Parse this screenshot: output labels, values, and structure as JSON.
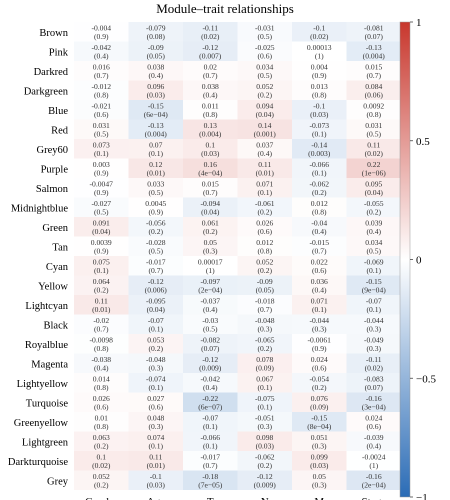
{
  "chart_data": {
    "type": "heatmap",
    "title": "Module–trait relationships",
    "columns": [
      "Gender",
      "Age",
      "T",
      "N",
      "M",
      "Stage"
    ],
    "rows": [
      {
        "name": "Brown",
        "cells": [
          [
            "-0.004",
            "(0.9)"
          ],
          [
            "-0.079",
            "(0.08)"
          ],
          [
            "-0.11",
            "(0.02)"
          ],
          [
            "-0.031",
            "(0.5)"
          ],
          [
            "-0.1",
            "(0.02)"
          ],
          [
            "-0.081",
            "(0.07)"
          ]
        ]
      },
      {
        "name": "Pink",
        "cells": [
          [
            "-0.042",
            "(0.4)"
          ],
          [
            "-0.09",
            "(0.05)"
          ],
          [
            "-0.12",
            "(0.007)"
          ],
          [
            "-0.025",
            "(0.6)"
          ],
          [
            "0.00013",
            "(1)"
          ],
          [
            "-0.13",
            "(0.004)"
          ]
        ]
      },
      {
        "name": "Darkred",
        "cells": [
          [
            "0.016",
            "(0.7)"
          ],
          [
            "0.038",
            "(0.4)"
          ],
          [
            "0.02",
            "(0.7)"
          ],
          [
            "0.034",
            "(0.5)"
          ],
          [
            "0.004",
            "(0.9)"
          ],
          [
            "0.015",
            "(0.7)"
          ]
        ]
      },
      {
        "name": "Darkgreen",
        "cells": [
          [
            "-0.012",
            "(0.8)"
          ],
          [
            "0.096",
            "(0.03)"
          ],
          [
            "0.038",
            "(0.4)"
          ],
          [
            "0.052",
            "(0.2)"
          ],
          [
            "0.013",
            "(0.8)"
          ],
          [
            "0.084",
            "(0.06)"
          ]
        ]
      },
      {
        "name": "Blue",
        "cells": [
          [
            "-0.021",
            "(0.6)"
          ],
          [
            "-0.15",
            "(6e−04)"
          ],
          [
            "0.011",
            "(0.8)"
          ],
          [
            "0.094",
            "(0.04)"
          ],
          [
            "-0.1",
            "(0.03)"
          ],
          [
            "0.0092",
            "(0.8)"
          ]
        ]
      },
      {
        "name": "Red",
        "cells": [
          [
            "0.031",
            "(0.5)"
          ],
          [
            "-0.13",
            "(0.004)"
          ],
          [
            "0.13",
            "(0.004)"
          ],
          [
            "0.14",
            "(0.001)"
          ],
          [
            "-0.073",
            "(0.1)"
          ],
          [
            "0.031",
            "(0.5)"
          ]
        ]
      },
      {
        "name": "Grey60",
        "cells": [
          [
            "0.073",
            "(0.1)"
          ],
          [
            "0.07",
            "(0.1)"
          ],
          [
            "0.1",
            "(0.03)"
          ],
          [
            "0.037",
            "(0.4)"
          ],
          [
            "-0.14",
            "(0.003)"
          ],
          [
            "0.11",
            "(0.02)"
          ]
        ]
      },
      {
        "name": "Purple",
        "cells": [
          [
            "0.003",
            "(0.9)"
          ],
          [
            "0.12",
            "(0.01)"
          ],
          [
            "0.16",
            "(4e−04)"
          ],
          [
            "0.11",
            "(0.01)"
          ],
          [
            "-0.066",
            "(0.1)"
          ],
          [
            "0.22",
            "(1e−06)"
          ]
        ]
      },
      {
        "name": "Salmon",
        "cells": [
          [
            "-0.0047",
            "(0.9)"
          ],
          [
            "0.033",
            "(0.5)"
          ],
          [
            "0.015",
            "(0.7)"
          ],
          [
            "0.071",
            "(0.1)"
          ],
          [
            "-0.062",
            "(0.2)"
          ],
          [
            "0.095",
            "(0.04)"
          ]
        ]
      },
      {
        "name": "Midnightblue",
        "cells": [
          [
            "-0.027",
            "(0.5)"
          ],
          [
            "0.0045",
            "(0.9)"
          ],
          [
            "-0.094",
            "(0.04)"
          ],
          [
            "-0.061",
            "(0.2)"
          ],
          [
            "0.012",
            "(0.8)"
          ],
          [
            "-0.055",
            "(0.2)"
          ]
        ]
      },
      {
        "name": "Green",
        "cells": [
          [
            "0.091",
            "(0.04)"
          ],
          [
            "-0.056",
            "(0.2)"
          ],
          [
            "0.061",
            "(0.2)"
          ],
          [
            "0.026",
            "(0.6)"
          ],
          [
            "-0.04",
            "(0.4)"
          ],
          [
            "0.039",
            "(0.4)"
          ]
        ]
      },
      {
        "name": "Tan",
        "cells": [
          [
            "0.0039",
            "(0.9)"
          ],
          [
            "-0.028",
            "(0.5)"
          ],
          [
            "0.05",
            "(0.3)"
          ],
          [
            "0.012",
            "(0.8)"
          ],
          [
            "-0.015",
            "(0.7)"
          ],
          [
            "0.034",
            "(0.5)"
          ]
        ]
      },
      {
        "name": "Cyan",
        "cells": [
          [
            "0.075",
            "(0.1)"
          ],
          [
            "-0.017",
            "(0.7)"
          ],
          [
            "0.00017",
            "(1)"
          ],
          [
            "0.052",
            "(0.2)"
          ],
          [
            "0.022",
            "(0.6)"
          ],
          [
            "-0.069",
            "(0.1)"
          ]
        ]
      },
      {
        "name": "Yellow",
        "cells": [
          [
            "0.064",
            "(0.2)"
          ],
          [
            "-0.12",
            "(0.006)"
          ],
          [
            "-0.097",
            "(2e−04)"
          ],
          [
            "-0.09",
            "(0.05)"
          ],
          [
            "0.036",
            "(0.4)"
          ],
          [
            "-0.15",
            "(9e−04)"
          ]
        ]
      },
      {
        "name": "Lightcyan",
        "cells": [
          [
            "0.11",
            "(0.01)"
          ],
          [
            "-0.095",
            "(0.04)"
          ],
          [
            "-0.037",
            "(0.4)"
          ],
          [
            "-0.018",
            "(0.7)"
          ],
          [
            "0.071",
            "(0.1)"
          ],
          [
            "-0.07",
            "(0.1)"
          ]
        ]
      },
      {
        "name": "Black",
        "cells": [
          [
            "-0.02",
            "(0.7)"
          ],
          [
            "-0.07",
            "(0.1)"
          ],
          [
            "-0.03",
            "(0.5)"
          ],
          [
            "-0.048",
            "(0.3)"
          ],
          [
            "-0.044",
            "(0.3)"
          ],
          [
            "-0.044",
            "(0.3)"
          ]
        ]
      },
      {
        "name": "Royalblue",
        "cells": [
          [
            "-0.0098",
            "(0.8)"
          ],
          [
            "0.053",
            "(0.2)"
          ],
          [
            "-0.082",
            "(0.07)"
          ],
          [
            "-0.065",
            "(0.2)"
          ],
          [
            "-0.0061",
            "(0.9)"
          ],
          [
            "-0.049",
            "(0.3)"
          ]
        ]
      },
      {
        "name": "Magenta",
        "cells": [
          [
            "-0.038",
            "(0.4)"
          ],
          [
            "-0.048",
            "(0.3)"
          ],
          [
            "-0.12",
            "(0.009)"
          ],
          [
            "0.078",
            "(0.09)"
          ],
          [
            "0.024",
            "(0.6)"
          ],
          [
            "-0.11",
            "(0.02)"
          ]
        ]
      },
      {
        "name": "Lightyellow",
        "cells": [
          [
            "0.014",
            "(0.8)"
          ],
          [
            "-0.074",
            "(0.1)"
          ],
          [
            "-0.042",
            "(0.4)"
          ],
          [
            "0.067",
            "(0.1)"
          ],
          [
            "-0.054",
            "(0.2)"
          ],
          [
            "-0.083",
            "(0.07)"
          ]
        ]
      },
      {
        "name": "Turquoise",
        "cells": [
          [
            "0.026",
            "(0.6)"
          ],
          [
            "0.027",
            "(0.6)"
          ],
          [
            "-0.22",
            "(6e−07)"
          ],
          [
            "-0.075",
            "(0.1)"
          ],
          [
            "0.076",
            "(0.09)"
          ],
          [
            "-0.16",
            "(3e−04)"
          ]
        ]
      },
      {
        "name": "Greenyellow",
        "cells": [
          [
            "0.01",
            "(0.8)"
          ],
          [
            "0.048",
            "(0.3)"
          ],
          [
            "-0.07",
            "(0.1)"
          ],
          [
            "-0.051",
            "(0.3)"
          ],
          [
            "-0.15",
            "(8e−04)"
          ],
          [
            "0.024",
            "(0.6)"
          ]
        ]
      },
      {
        "name": "Lightgreen",
        "cells": [
          [
            "0.063",
            "(0.2)"
          ],
          [
            "0.074",
            "(0.1)"
          ],
          [
            "-0.066",
            "(0.1)"
          ],
          [
            "0.098",
            "(0.03)"
          ],
          [
            "0.051",
            "(0.3)"
          ],
          [
            "-0.039",
            "(0.4)"
          ]
        ]
      },
      {
        "name": "Darkturquoise",
        "cells": [
          [
            "0.1",
            "(0.02)"
          ],
          [
            "0.11",
            "(0.01)"
          ],
          [
            "-0.017",
            "(0.7)"
          ],
          [
            "-0.062",
            "(0.2)"
          ],
          [
            "0.099",
            "(0.03)"
          ],
          [
            "-0.0024",
            "(1)"
          ]
        ]
      },
      {
        "name": "Grey",
        "cells": [
          [
            "0.052",
            "(0.2)"
          ],
          [
            "-0.1",
            "(0.03)"
          ],
          [
            "-0.18",
            "(7e−05)"
          ],
          [
            "-0.12",
            "(0.009)"
          ],
          [
            "0.05",
            "(0.3)"
          ],
          [
            "-0.16",
            "(2e−04)"
          ]
        ]
      }
    ],
    "value_range": [
      -1,
      1
    ],
    "colorbar_ticks": [
      "1",
      "0.5",
      "0",
      "−0.5",
      "−1"
    ],
    "colorbar_tick_values": [
      1,
      0.5,
      0,
      -0.5,
      -1
    ],
    "colors": {
      "negative": "#2b6cb6",
      "zero": "#ffffff",
      "positive": "#c8372d"
    }
  }
}
